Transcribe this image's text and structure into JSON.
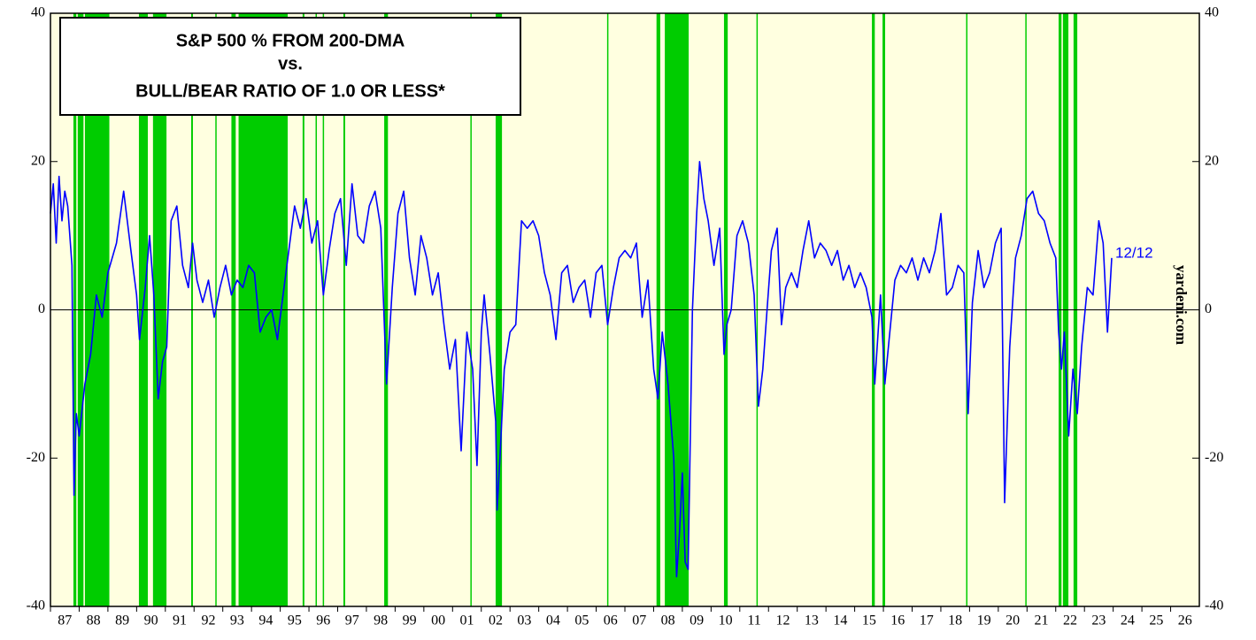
{
  "chart_data": {
    "type": "line",
    "title_lines": [
      "S&P 500 % FROM 200-DMA",
      "vs.",
      "BULL/BEAR RATIO OF 1.0 OR LESS*"
    ],
    "annotation": "12/12",
    "source": "yardeni.com",
    "xlim": [
      1987,
      2027
    ],
    "xticks": [
      {
        "value": 1987,
        "label": "87"
      },
      {
        "value": 1988,
        "label": "88"
      },
      {
        "value": 1989,
        "label": "89"
      },
      {
        "value": 1990,
        "label": "90"
      },
      {
        "value": 1991,
        "label": "91"
      },
      {
        "value": 1992,
        "label": "92"
      },
      {
        "value": 1993,
        "label": "93"
      },
      {
        "value": 1994,
        "label": "94"
      },
      {
        "value": 1995,
        "label": "95"
      },
      {
        "value": 1996,
        "label": "96"
      },
      {
        "value": 1997,
        "label": "97"
      },
      {
        "value": 1998,
        "label": "98"
      },
      {
        "value": 1999,
        "label": "99"
      },
      {
        "value": 2000,
        "label": "00"
      },
      {
        "value": 2001,
        "label": "01"
      },
      {
        "value": 2002,
        "label": "02"
      },
      {
        "value": 2003,
        "label": "03"
      },
      {
        "value": 2004,
        "label": "04"
      },
      {
        "value": 2005,
        "label": "05"
      },
      {
        "value": 2006,
        "label": "06"
      },
      {
        "value": 2007,
        "label": "07"
      },
      {
        "value": 2008,
        "label": "08"
      },
      {
        "value": 2009,
        "label": "09"
      },
      {
        "value": 2010,
        "label": "10"
      },
      {
        "value": 2011,
        "label": "11"
      },
      {
        "value": 2012,
        "label": "12"
      },
      {
        "value": 2013,
        "label": "13"
      },
      {
        "value": 2014,
        "label": "14"
      },
      {
        "value": 2015,
        "label": "15"
      },
      {
        "value": 2016,
        "label": "16"
      },
      {
        "value": 2017,
        "label": "17"
      },
      {
        "value": 2018,
        "label": "18"
      },
      {
        "value": 2019,
        "label": "19"
      },
      {
        "value": 2020,
        "label": "20"
      },
      {
        "value": 2021,
        "label": "21"
      },
      {
        "value": 2022,
        "label": "22"
      },
      {
        "value": 2023,
        "label": "23"
      },
      {
        "value": 2024,
        "label": "24"
      },
      {
        "value": 2025,
        "label": "25"
      },
      {
        "value": 2026,
        "label": "26"
      }
    ],
    "ylim": [
      -40,
      40
    ],
    "yticks": [
      -40,
      -20,
      0,
      20,
      40
    ],
    "y2lim": [
      -40,
      40
    ],
    "y2ticks": [
      -40,
      -20,
      0,
      20,
      40
    ],
    "background": "#ffffe0",
    "band_color": "#00cc00",
    "bands": [
      [
        1987.8,
        1987.9
      ],
      [
        1987.95,
        1988.15
      ],
      [
        1988.2,
        1989.05
      ],
      [
        1990.08,
        1990.39
      ],
      [
        1990.57,
        1991.04
      ],
      [
        1991.9,
        1991.96
      ],
      [
        1992.74,
        1992.78
      ],
      [
        1993.3,
        1993.45
      ],
      [
        1993.55,
        1995.26
      ],
      [
        1995.78,
        1995.84
      ],
      [
        1996.23,
        1996.27
      ],
      [
        1996.48,
        1996.52
      ],
      [
        1997.2,
        1997.26
      ],
      [
        1998.62,
        1998.75
      ],
      [
        2001.62,
        2001.66
      ],
      [
        2002.5,
        2002.72
      ],
      [
        2006.38,
        2006.42
      ],
      [
        2008.1,
        2008.23
      ],
      [
        2008.39,
        2009.22
      ],
      [
        2010.45,
        2010.58
      ],
      [
        2011.58,
        2011.62
      ],
      [
        2015.6,
        2015.7
      ],
      [
        2015.97,
        2016.06
      ],
      [
        2018.88,
        2018.92
      ],
      [
        2020.94,
        2020.98
      ],
      [
        2022.1,
        2022.2
      ],
      [
        2022.25,
        2022.44
      ],
      [
        2022.62,
        2022.75
      ]
    ],
    "series": [
      {
        "color": "#0000ff",
        "x": [
          1987.0,
          1987.1,
          1987.2,
          1987.3,
          1987.4,
          1987.5,
          1987.6,
          1987.75,
          1987.82,
          1987.9,
          1988.0,
          1988.2,
          1988.4,
          1988.6,
          1988.8,
          1989.0,
          1989.3,
          1989.55,
          1989.8,
          1990.0,
          1990.1,
          1990.3,
          1990.45,
          1990.6,
          1990.75,
          1990.9,
          1991.05,
          1991.2,
          1991.4,
          1991.6,
          1991.8,
          1991.95,
          1992.1,
          1992.3,
          1992.5,
          1992.7,
          1992.9,
          1993.1,
          1993.3,
          1993.5,
          1993.7,
          1993.9,
          1994.1,
          1994.3,
          1994.5,
          1994.7,
          1994.9,
          1995.1,
          1995.3,
          1995.5,
          1995.7,
          1995.9,
          1996.1,
          1996.3,
          1996.5,
          1996.7,
          1996.9,
          1997.1,
          1997.3,
          1997.5,
          1997.7,
          1997.9,
          1998.1,
          1998.3,
          1998.5,
          1998.7,
          1998.9,
          1999.1,
          1999.3,
          1999.5,
          1999.7,
          1999.9,
          2000.1,
          2000.3,
          2000.5,
          2000.7,
          2000.9,
          2001.1,
          2001.3,
          2001.5,
          2001.7,
          2001.85,
          2002.0,
          2002.1,
          2002.3,
          2002.5,
          2002.55,
          2002.65,
          2002.8,
          2003.0,
          2003.2,
          2003.4,
          2003.6,
          2003.8,
          2004.0,
          2004.2,
          2004.4,
          2004.6,
          2004.8,
          2005.0,
          2005.2,
          2005.4,
          2005.6,
          2005.8,
          2006.0,
          2006.2,
          2006.4,
          2006.6,
          2006.8,
          2007.0,
          2007.2,
          2007.4,
          2007.6,
          2007.8,
          2008.0,
          2008.15,
          2008.3,
          2008.5,
          2008.7,
          2008.8,
          2008.9,
          2009.0,
          2009.1,
          2009.2,
          2009.35,
          2009.5,
          2009.6,
          2009.75,
          2009.9,
          2010.1,
          2010.3,
          2010.45,
          2010.55,
          2010.7,
          2010.9,
          2011.1,
          2011.3,
          2011.5,
          2011.65,
          2011.8,
          2011.95,
          2012.1,
          2012.3,
          2012.45,
          2012.6,
          2012.8,
          2013.0,
          2013.2,
          2013.4,
          2013.6,
          2013.8,
          2014.0,
          2014.2,
          2014.4,
          2014.6,
          2014.8,
          2015.0,
          2015.2,
          2015.4,
          2015.6,
          2015.7,
          2015.9,
          2016.05,
          2016.2,
          2016.4,
          2016.6,
          2016.8,
          2017.0,
          2017.2,
          2017.4,
          2017.6,
          2017.8,
          2018.0,
          2018.2,
          2018.4,
          2018.6,
          2018.8,
          2018.95,
          2019.1,
          2019.3,
          2019.5,
          2019.7,
          2019.9,
          2020.1,
          2020.22,
          2020.4,
          2020.6,
          2020.8,
          2021.0,
          2021.2,
          2021.4,
          2021.6,
          2021.8,
          2022.0,
          2022.1,
          2022.2,
          2022.3,
          2022.45,
          2022.6,
          2022.75,
          2022.9,
          2023.1,
          2023.3,
          2023.5,
          2023.65,
          2023.8,
          2023.95
        ],
        "values": [
          13,
          17,
          9,
          18,
          12,
          16,
          14,
          6,
          -25,
          -14,
          -17,
          -10,
          -6,
          2,
          -1,
          5,
          9,
          16,
          8,
          2,
          -4,
          3,
          10,
          2,
          -12,
          -7,
          -5,
          12,
          14,
          6,
          3,
          9,
          4,
          1,
          4,
          -1,
          3,
          6,
          2,
          4,
          3,
          6,
          5,
          -3,
          -1,
          0,
          -4,
          2,
          8,
          14,
          11,
          15,
          9,
          12,
          2,
          8,
          13,
          15,
          6,
          17,
          10,
          9,
          14,
          16,
          11,
          -10,
          3,
          13,
          16,
          7,
          2,
          10,
          7,
          2,
          5,
          -2,
          -8,
          -4,
          -19,
          -3,
          -8,
          -21,
          -3,
          2,
          -6,
          -15,
          -27,
          -20,
          -8,
          -3,
          -2,
          12,
          11,
          12,
          10,
          5,
          2,
          -4,
          5,
          6,
          1,
          3,
          4,
          -1,
          5,
          6,
          -2,
          3,
          7,
          8,
          7,
          9,
          -1,
          4,
          -8,
          -12,
          -3,
          -10,
          -20,
          -36,
          -30,
          -22,
          -34,
          -35,
          0,
          13,
          20,
          15,
          12,
          6,
          11,
          -6,
          -2,
          0,
          10,
          12,
          9,
          2,
          -13,
          -8,
          0,
          8,
          11,
          -2,
          3,
          5,
          3,
          8,
          12,
          7,
          9,
          8,
          6,
          8,
          4,
          6,
          3,
          5,
          3,
          -1,
          -10,
          2,
          -10,
          -4,
          4,
          6,
          5,
          7,
          4,
          7,
          5,
          8,
          13,
          2,
          3,
          6,
          5,
          -14,
          1,
          8,
          3,
          5,
          9,
          11,
          -26,
          -5,
          7,
          10,
          15,
          16,
          13,
          12,
          9,
          7,
          -3,
          -8,
          -3,
          -17,
          -8,
          -14,
          -5,
          3,
          2,
          12,
          9,
          -3,
          7
        ]
      }
    ]
  }
}
